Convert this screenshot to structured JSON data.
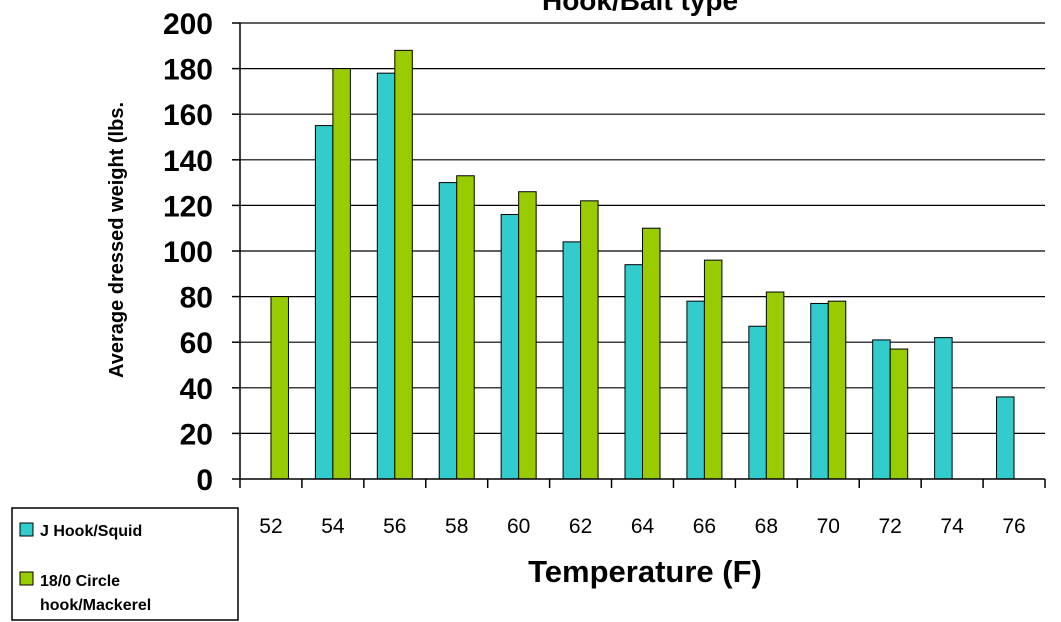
{
  "chart_data": {
    "type": "bar",
    "title": "Hook/Bait type",
    "xlabel": "Temperature (F)",
    "ylabel": "Average dressed weight (lbs.",
    "categories": [
      "52",
      "54",
      "56",
      "58",
      "60",
      "62",
      "64",
      "66",
      "68",
      "70",
      "72",
      "74",
      "76"
    ],
    "ylim": [
      0,
      200
    ],
    "yticks": [
      0,
      20,
      40,
      60,
      80,
      100,
      120,
      140,
      160,
      180,
      200
    ],
    "grid": true,
    "legend_position": "bottom-left",
    "series": [
      {
        "name": "J Hook/Squid",
        "color": "#33CCCC",
        "values": [
          null,
          155,
          178,
          130,
          116,
          104,
          94,
          78,
          67,
          77,
          61,
          62,
          36
        ]
      },
      {
        "name": "18/0 Circle hook/Mackerel",
        "legend_lines": [
          "18/0 Circle",
          "hook/Mackerel"
        ],
        "color": "#99CC00",
        "values": [
          80,
          180,
          188,
          133,
          126,
          122,
          110,
          96,
          82,
          78,
          57,
          null,
          null
        ]
      }
    ]
  }
}
